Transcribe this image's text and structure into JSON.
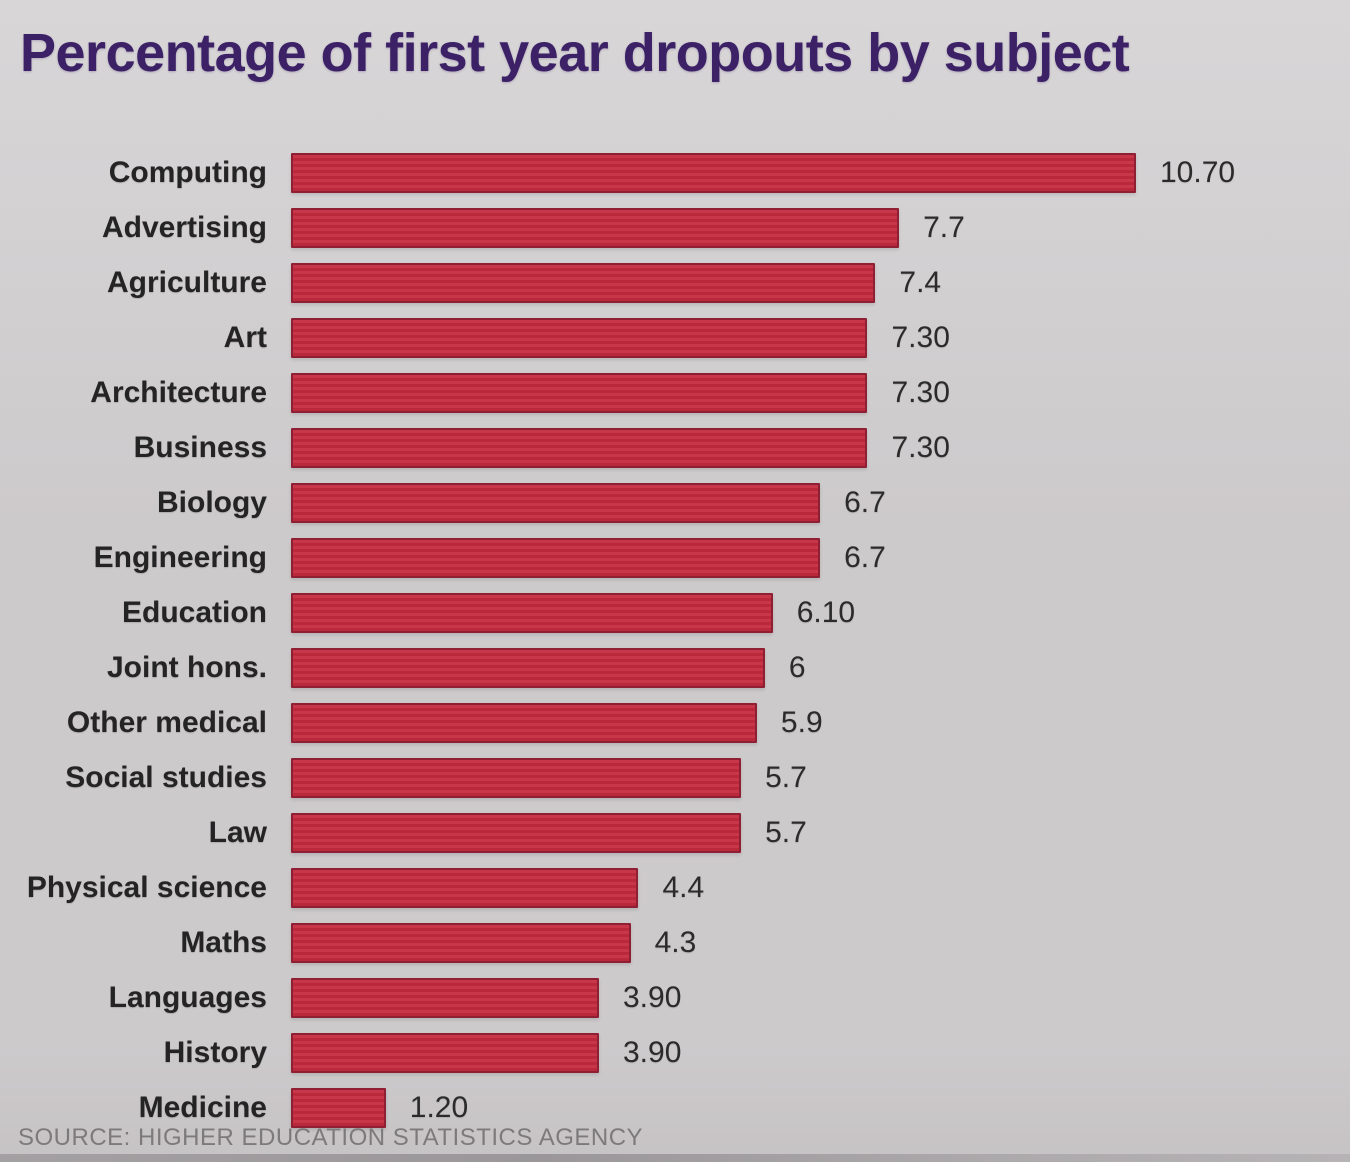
{
  "title": "Percentage of first year dropouts by subject",
  "source_line": "SOURCE: HIGHER EDUCATION STATISTICS AGENCY",
  "colors": {
    "background_top": "#d8d6d7",
    "background_mid": "#cdcacc",
    "background_bottom": "#c6c3c5",
    "bar_fill": "#c42a3e",
    "bar_edge": "#8f1f33",
    "title_text": "#3c2166",
    "label_text": "#242424",
    "value_text": "#2b2b2b",
    "source_text": "#7d7a7c"
  },
  "chart_data": {
    "type": "bar",
    "orientation": "horizontal",
    "title": "Percentage of first year dropouts by subject",
    "xlabel": "",
    "ylabel": "",
    "xlim": [
      0,
      10.7
    ],
    "grid": false,
    "legend": false,
    "categories": [
      "Computing",
      "Advertising",
      "Agriculture",
      "Art",
      "Architecture",
      "Business",
      "Biology",
      "Engineering",
      "Education",
      "Joint hons.",
      "Other medical",
      "Social studies",
      "Law",
      "Physical science",
      "Maths",
      "Languages",
      "History",
      "Medicine"
    ],
    "values": [
      10.7,
      7.7,
      7.4,
      7.3,
      7.3,
      7.3,
      6.7,
      6.7,
      6.1,
      6.0,
      5.9,
      5.7,
      5.7,
      4.4,
      4.3,
      3.9,
      3.9,
      1.2
    ],
    "value_labels": [
      "10.70",
      "7.7",
      "7.4",
      "7.30",
      "7.30",
      "7.30",
      "6.7",
      "6.7",
      "6.10",
      "6",
      "5.9",
      "5.7",
      "5.7",
      "4.4",
      "4.3",
      "3.90",
      "3.90",
      "1.20"
    ],
    "annotations": "data labels shown at end of each bar",
    "source": "SOURCE: HIGHER EDUCATION STATISTICS AGENCY"
  }
}
